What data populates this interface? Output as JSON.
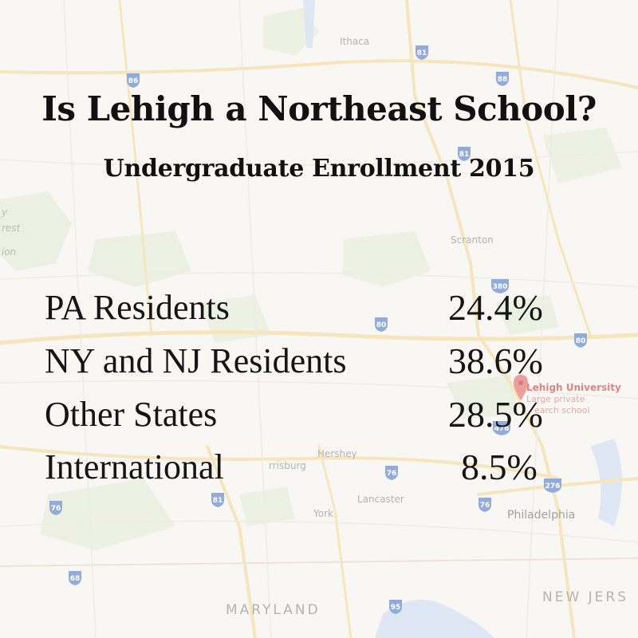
{
  "title": "Is Lehigh a Northeast School?",
  "subtitle": "Undergraduate Enrollment 2015",
  "rows": [
    {
      "label": "PA Residents",
      "value": "24.4%"
    },
    {
      "label": "NY and NJ Residents",
      "value": "38.6%"
    },
    {
      "label": "Other States",
      "value": "28.5%"
    },
    {
      "label": "International",
      "value": "8.5%"
    }
  ],
  "map": {
    "places": {
      "ithaca": "Ithaca",
      "scranton": "Scranton",
      "hershey": "Hershey",
      "lancaster": "Lancaster",
      "york": "York",
      "philadelphia": "Philadelphia",
      "harrisburg_partial": "rrisburg",
      "maryland": "MARYLAND",
      "new_jersey_partial": "NEW JERS",
      "forest_partial_1": "y",
      "forest_partial_2": "rest",
      "forest_partial_3": "ion"
    },
    "marker": {
      "name": "Lehigh University",
      "line1": "Large private",
      "line2": "earch school"
    },
    "shields": {
      "i86": "86",
      "i81a": "81",
      "i88": "88",
      "i81b": "81",
      "i380": "380",
      "i80a": "80",
      "i80b": "80",
      "i476": "476",
      "i76a": "76",
      "i76b": "76",
      "i81c": "81",
      "i76c": "76",
      "i276": "276",
      "i68": "68",
      "i95": "95"
    },
    "colors": {
      "land": "#f5f3ee",
      "park": "#dfe8cf",
      "road": "#f3d79a",
      "water": "#c8d8ec",
      "marker": "#e06a64"
    }
  }
}
